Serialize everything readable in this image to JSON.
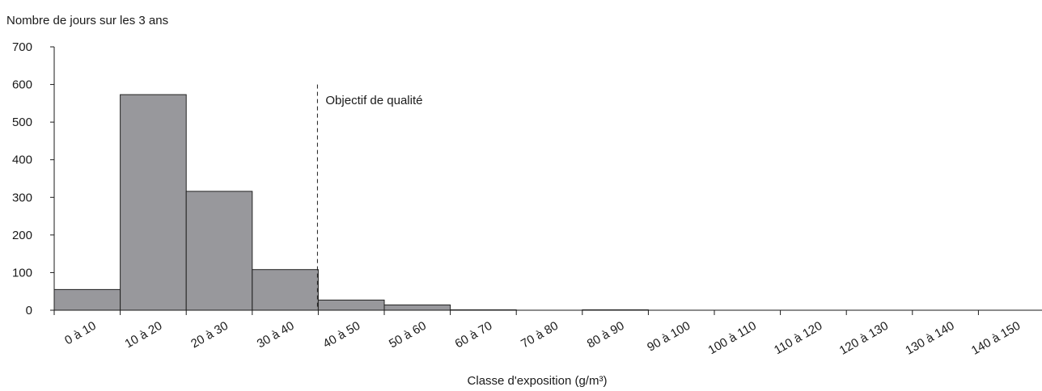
{
  "chart_data": {
    "type": "bar",
    "title": "",
    "ylabel": "Nombre de jours sur les 3 ans",
    "xlabel": "Classe d'exposition (g/m³)",
    "ylim": [
      0,
      700
    ],
    "yticks": [
      0,
      100,
      200,
      300,
      400,
      500,
      600,
      700
    ],
    "categories": [
      "0 à 10",
      "10 à 20",
      "20 à 30",
      "30 à 40",
      "40 à 50",
      "50 à 60",
      "60 à 70",
      "70 à 80",
      "80 à 90",
      "90 à 100",
      "100 à 110",
      "110 à 120",
      "120 à 130",
      "130 à 140",
      "140 à 150"
    ],
    "values": [
      55,
      573,
      316,
      108,
      27,
      14,
      1,
      0,
      1,
      0,
      0,
      0,
      0,
      0,
      0
    ],
    "bar_color": "#98989c",
    "bar_edge_color": "#222222",
    "grid": false,
    "annotations": [
      {
        "text": "Objectif de qualité",
        "x_boundary": 40,
        "style": "dashed vertical line"
      }
    ]
  }
}
